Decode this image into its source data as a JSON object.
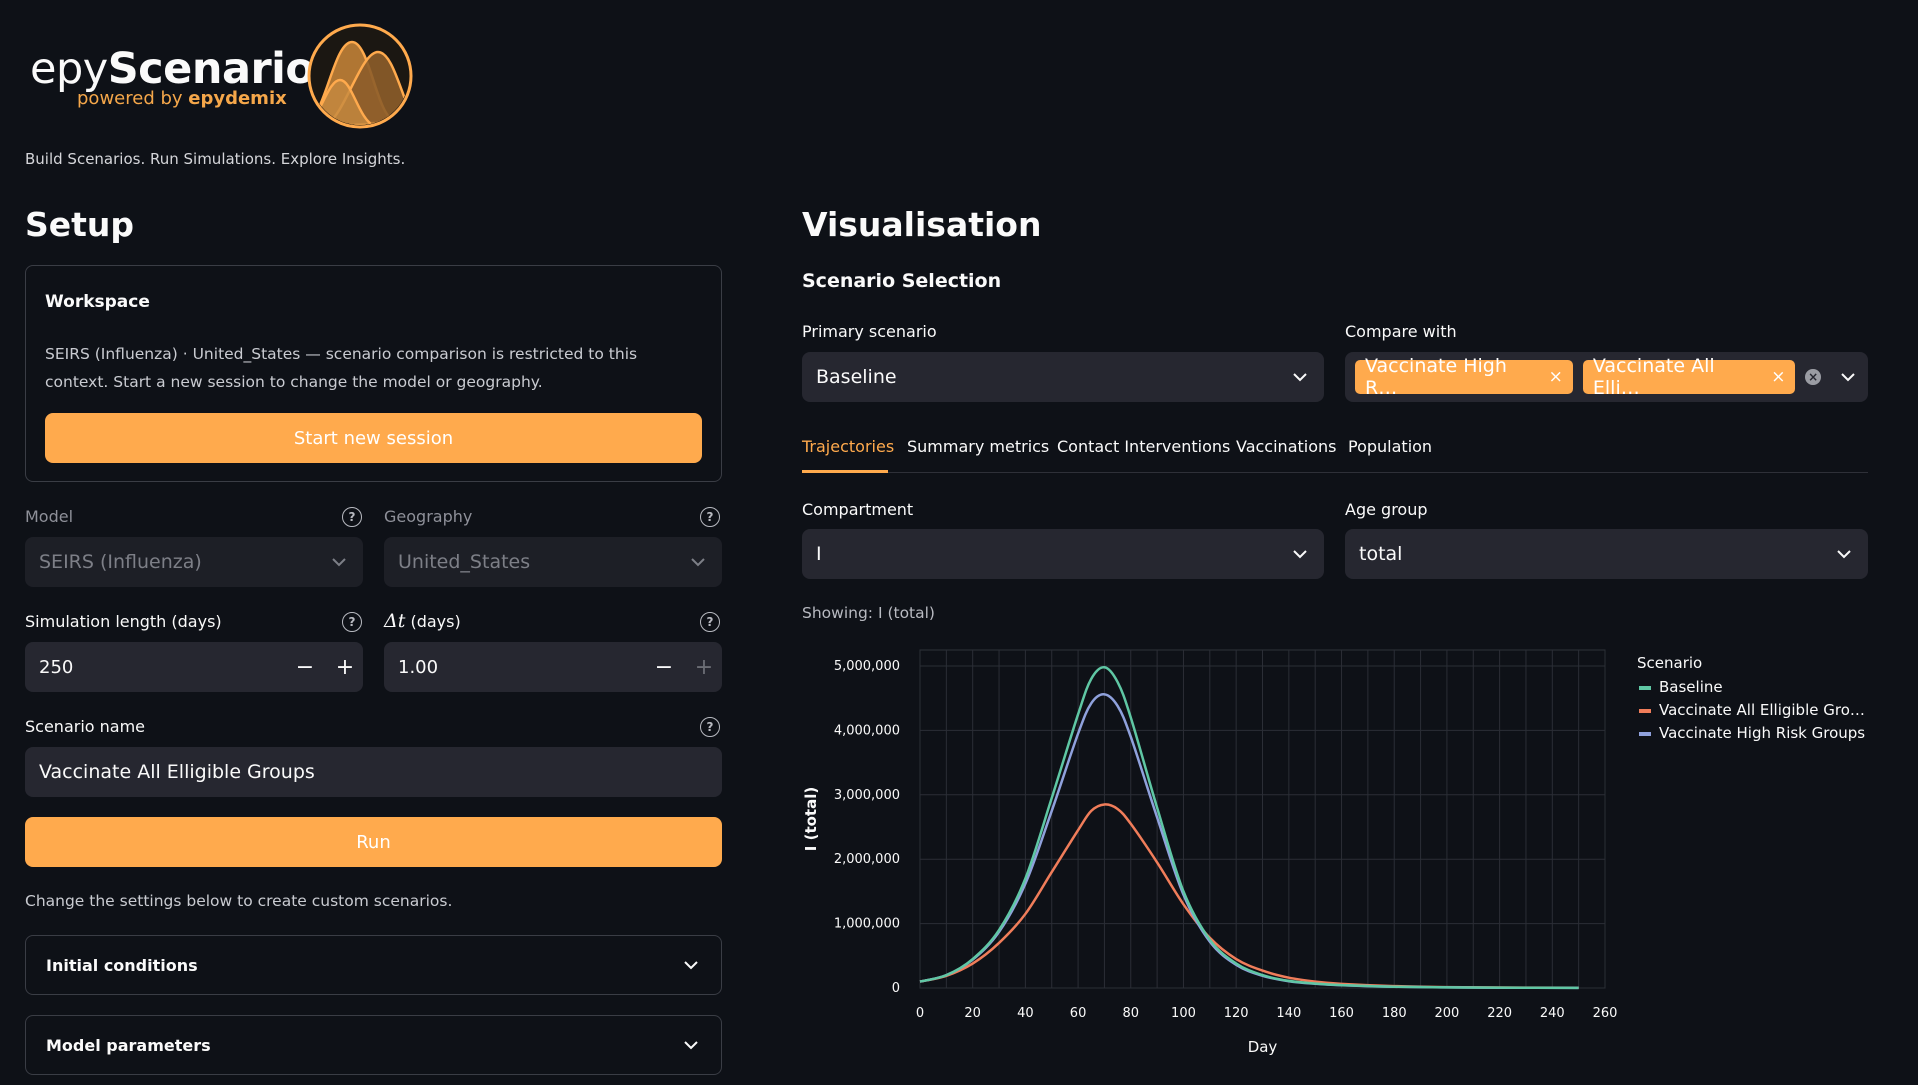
{
  "app": {
    "logo_main_light": "epy",
    "logo_main_bold": "Scenario",
    "logo_sub_light": "powered by ",
    "logo_sub_bold": "epydemix",
    "tagline": "Build Scenarios. Run Simulations. Explore Insights."
  },
  "setup": {
    "title": "Setup",
    "workspace": {
      "title": "Workspace",
      "description": "SEIRS (Influenza) · United_States — scenario comparison is restricted to this context. Start a new session to change the model or geography.",
      "button": "Start new session"
    },
    "model": {
      "label": "Model",
      "value": "SEIRS (Influenza)"
    },
    "geography": {
      "label": "Geography",
      "value": "United_States"
    },
    "sim_length": {
      "label": "Simulation length (days)",
      "value": "250"
    },
    "dt": {
      "label_symbol": "Δt",
      "label_rest": " (days)",
      "value": "1.00"
    },
    "scenario_name": {
      "label": "Scenario name",
      "value": "Vaccinate All Elligible Groups"
    },
    "run_button": "Run",
    "hint": "Change the settings below to create custom scenarios.",
    "expanders": [
      "Initial conditions",
      "Model parameters"
    ]
  },
  "visualisation": {
    "title": "Visualisation",
    "scenario_selection": "Scenario Selection",
    "primary": {
      "label": "Primary scenario",
      "value": "Baseline"
    },
    "compare": {
      "label": "Compare with",
      "tags": [
        "Vaccinate High R…",
        "Vaccinate All Elli…"
      ]
    },
    "tabs": [
      "Trajectories",
      "Summary metrics",
      "Contact Interventions",
      "Vaccinations",
      "Population"
    ],
    "active_tab": "Trajectories",
    "compartment": {
      "label": "Compartment",
      "value": "I"
    },
    "age_group": {
      "label": "Age group",
      "value": "total"
    },
    "showing": "Showing: I (total)"
  },
  "colors": {
    "accent": "#ffaa4d",
    "baseline": "#5fc7a4",
    "vacc_all": "#f07d5a",
    "vacc_high": "#8fa1dc"
  },
  "chart_data": {
    "type": "line",
    "xlabel": "Day",
    "ylabel": "I (total)",
    "xlim": [
      0,
      260
    ],
    "ylim": [
      0,
      5000000
    ],
    "x_ticks": [
      0,
      20,
      40,
      60,
      80,
      100,
      120,
      140,
      160,
      180,
      200,
      220,
      240,
      260
    ],
    "y_ticks": [
      0,
      1000000,
      2000000,
      3000000,
      4000000,
      5000000
    ],
    "y_tick_labels": [
      "0",
      "1,000,000",
      "2,000,000",
      "3,000,000",
      "4,000,000",
      "5,000,000"
    ],
    "grid": true,
    "legend_title": "Scenario",
    "legend_position": "right",
    "x": [
      0,
      10,
      20,
      30,
      40,
      50,
      60,
      65,
      70,
      75,
      80,
      90,
      100,
      110,
      120,
      130,
      140,
      150,
      160,
      180,
      200,
      220,
      250
    ],
    "series": [
      {
        "name": "Baseline",
        "color": "#5fc7a4",
        "values": [
          100000,
          200000,
          450000,
          900000,
          1700000,
          2950000,
          4250000,
          4800000,
          4980000,
          4750000,
          4200000,
          2800000,
          1500000,
          750000,
          380000,
          200000,
          110000,
          70000,
          45000,
          20000,
          10000,
          5000,
          2000
        ]
      },
      {
        "name": "Vaccinate All Elligible Gro…",
        "color": "#f07d5a",
        "values": [
          100000,
          190000,
          380000,
          700000,
          1150000,
          1800000,
          2450000,
          2750000,
          2850000,
          2780000,
          2550000,
          1950000,
          1300000,
          780000,
          450000,
          270000,
          160000,
          100000,
          65000,
          30000,
          14000,
          7000,
          3000
        ]
      },
      {
        "name": "Vaccinate High Risk Groups",
        "color": "#8fa1dc",
        "values": [
          100000,
          200000,
          440000,
          870000,
          1620000,
          2750000,
          3950000,
          4420000,
          4560000,
          4380000,
          3900000,
          2650000,
          1450000,
          720000,
          360000,
          190000,
          105000,
          65000,
          42000,
          19000,
          9000,
          4500,
          2000
        ]
      }
    ]
  }
}
